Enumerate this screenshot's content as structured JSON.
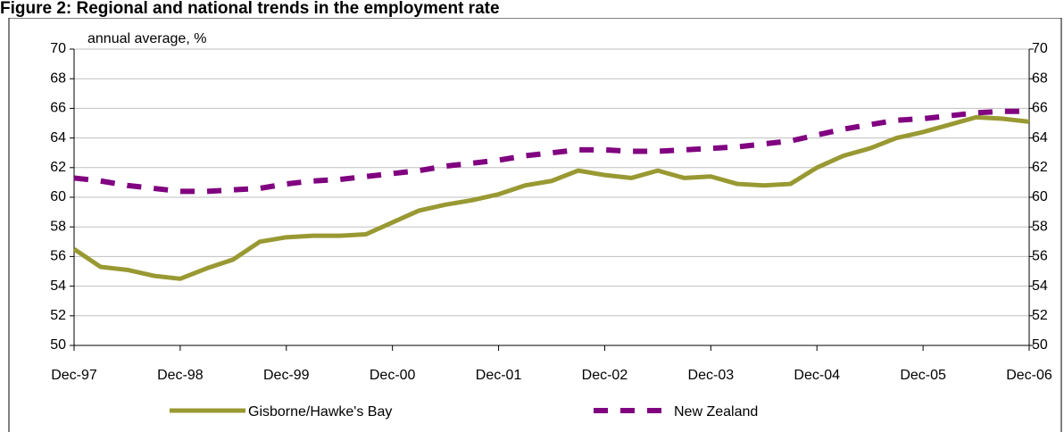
{
  "chart_data": {
    "type": "line",
    "title": "Figure 2: Regional and national trends in the employment rate",
    "y_label": "annual average, %",
    "categories": [
      "Dec-97",
      null,
      null,
      null,
      "Dec-98",
      null,
      null,
      null,
      "Dec-99",
      null,
      null,
      null,
      "Dec-00",
      null,
      null,
      null,
      "Dec-01",
      null,
      null,
      null,
      "Dec-02",
      null,
      null,
      null,
      "Dec-03",
      null,
      null,
      null,
      "Dec-04",
      null,
      null,
      null,
      "Dec-05",
      null,
      null,
      null,
      "Dec-06"
    ],
    "series": [
      {
        "name": "Gisborne/Hawke's Bay",
        "color": "#999933",
        "values": [
          56.5,
          55.3,
          55.1,
          54.7,
          54.5,
          55.2,
          55.8,
          57.0,
          57.3,
          57.4,
          57.4,
          57.5,
          58.3,
          59.1,
          59.5,
          59.8,
          60.2,
          60.8,
          61.1,
          61.8,
          61.5,
          61.3,
          61.8,
          61.3,
          61.4,
          60.9,
          60.8,
          60.9,
          62.0,
          62.8,
          63.3,
          64.0,
          64.4,
          64.9,
          65.4,
          65.3,
          65.1
        ]
      },
      {
        "name": "New Zealand",
        "color": "#800080",
        "values": [
          61.3,
          61.1,
          60.8,
          60.6,
          60.4,
          60.4,
          60.5,
          60.6,
          60.9,
          61.1,
          61.2,
          61.4,
          61.6,
          61.8,
          62.1,
          62.3,
          62.5,
          62.8,
          63.0,
          63.2,
          63.2,
          63.1,
          63.1,
          63.2,
          63.3,
          63.4,
          63.6,
          63.8,
          64.2,
          64.6,
          64.9,
          65.2,
          65.3,
          65.5,
          65.7,
          65.8,
          65.8
        ]
      }
    ],
    "ylim": [
      50,
      70
    ],
    "yticks": [
      50,
      52,
      54,
      56,
      58,
      60,
      62,
      64,
      66,
      68,
      70
    ],
    "y2lim": [
      50,
      70
    ],
    "y2ticks": [
      50,
      52,
      54,
      56,
      58,
      60,
      62,
      64,
      66,
      68,
      70
    ],
    "grid": true,
    "legend": "bottom"
  }
}
